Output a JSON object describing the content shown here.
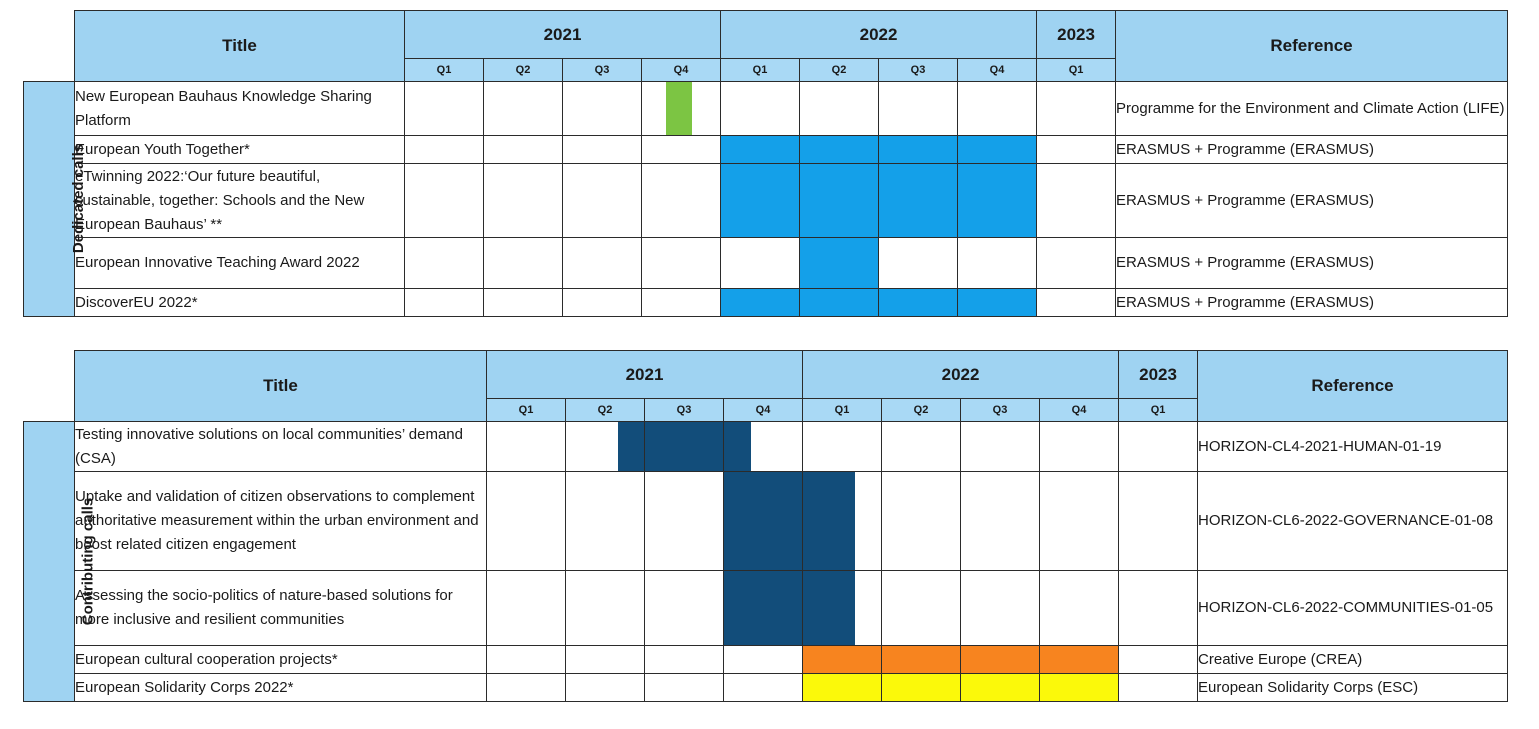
{
  "colors": {
    "header_bg": "#9fd3f2",
    "blue_bar": "#14a0e9",
    "navy_bar": "#124d7a",
    "green_bar": "#7cc543",
    "orange_bar": "#f7841f",
    "yellow_bar": "#fbf90a"
  },
  "table1": {
    "title_header": "Title",
    "reference_header": "Reference",
    "year_2021": "2021",
    "year_2022": "2022",
    "year_2023": "2023",
    "quarters": [
      "Q1",
      "Q2",
      "Q3",
      "Q4",
      "Q1",
      "Q2",
      "Q3",
      "Q4",
      "Q1"
    ],
    "side_label": "Dedicated calls",
    "rows": [
      {
        "title": "New European Bauhaus Knowledge Sharing Platform",
        "reference": "Programme for the Environment and Climate Action (LIFE)",
        "color": "green"
      },
      {
        "title": "European Youth Together*",
        "reference": "ERASMUS + Programme (ERASMUS)",
        "color": "blue"
      },
      {
        "title": "eTwinning 2022:‘Our future beautiful, sustainable, together: Schools and the New European Bauhaus’ **",
        "reference": "ERASMUS + Programme (ERASMUS)",
        "color": "blue"
      },
      {
        "title": "European Innovative Teaching Award 2022",
        "reference": "ERASMUS + Programme (ERASMUS)",
        "color": "blue"
      },
      {
        "title": "DiscoverEU 2022*",
        "reference": "ERASMUS + Programme (ERASMUS)",
        "color": "blue"
      }
    ]
  },
  "table2": {
    "title_header": "Title",
    "reference_header": "Reference",
    "year_2021": "2021",
    "year_2022": "2022",
    "year_2023": "2023",
    "quarters": [
      "Q1",
      "Q2",
      "Q3",
      "Q4",
      "Q1",
      "Q2",
      "Q3",
      "Q4",
      "Q1"
    ],
    "side_label": "Contributing calls",
    "rows": [
      {
        "title": "Testing innovative solutions on local communities’ demand (CSA)",
        "reference": "HORIZON-CL4-2021-HUMAN-01-19",
        "color": "navy"
      },
      {
        "title": "Uptake and validation of citizen observations to complement authoritative measurement within the urban environment and boost related citizen engagement",
        "reference": "HORIZON-CL6-2022-GOVERNANCE-01-08",
        "color": "navy"
      },
      {
        "title": "Assessing the socio-politics of nature-based solutions for more inclusive and resilient communities",
        "reference": "HORIZON-CL6-2022-COMMUNITIES-01-05",
        "color": "navy"
      },
      {
        "title": "European cultural cooperation projects*",
        "reference": "Creative Europe (CREA)",
        "color": "orange"
      },
      {
        "title": "European Solidarity Corps 2022*",
        "reference": "European Solidarity Corps (ESC)",
        "color": "yellow"
      }
    ]
  }
}
